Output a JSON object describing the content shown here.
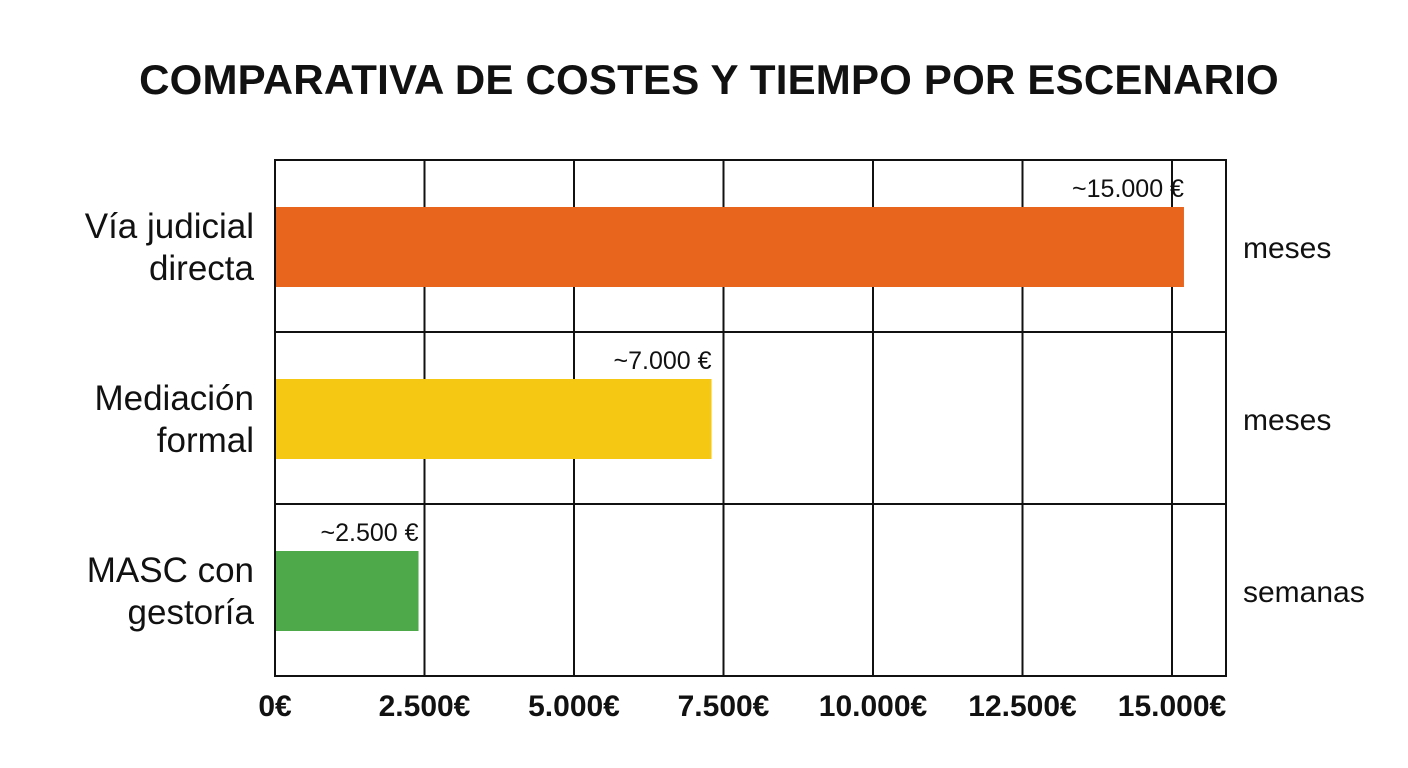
{
  "chart_data": {
    "type": "bar",
    "orientation": "horizontal",
    "title": "COMPARATIVA DE COSTES Y TIEMPO POR ESCENARIO",
    "xlabel": "",
    "ylabel": "",
    "xlim": [
      0,
      16000
    ],
    "grid": true,
    "x_ticks": [
      0,
      2500,
      5000,
      7500,
      10000,
      12500,
      15000
    ],
    "x_tick_labels": [
      "0€",
      "2.500€",
      "5.000€",
      "7.500€",
      "10.000€",
      "12.500€",
      "15.000€"
    ],
    "categories": [
      [
        "Vía judicial",
        "directa"
      ],
      [
        "Mediación",
        "formal"
      ],
      [
        "MASC con",
        "gestoría"
      ]
    ],
    "values": [
      15200,
      7300,
      2400
    ],
    "value_labels": [
      "~15.000 €",
      "~7.000 €",
      "~2.500 €"
    ],
    "time_labels": [
      "meses",
      "meses",
      "semanas"
    ],
    "colors": [
      "#E8651E",
      "#F5C814",
      "#4EA94B"
    ],
    "axis_color": "#111111"
  }
}
